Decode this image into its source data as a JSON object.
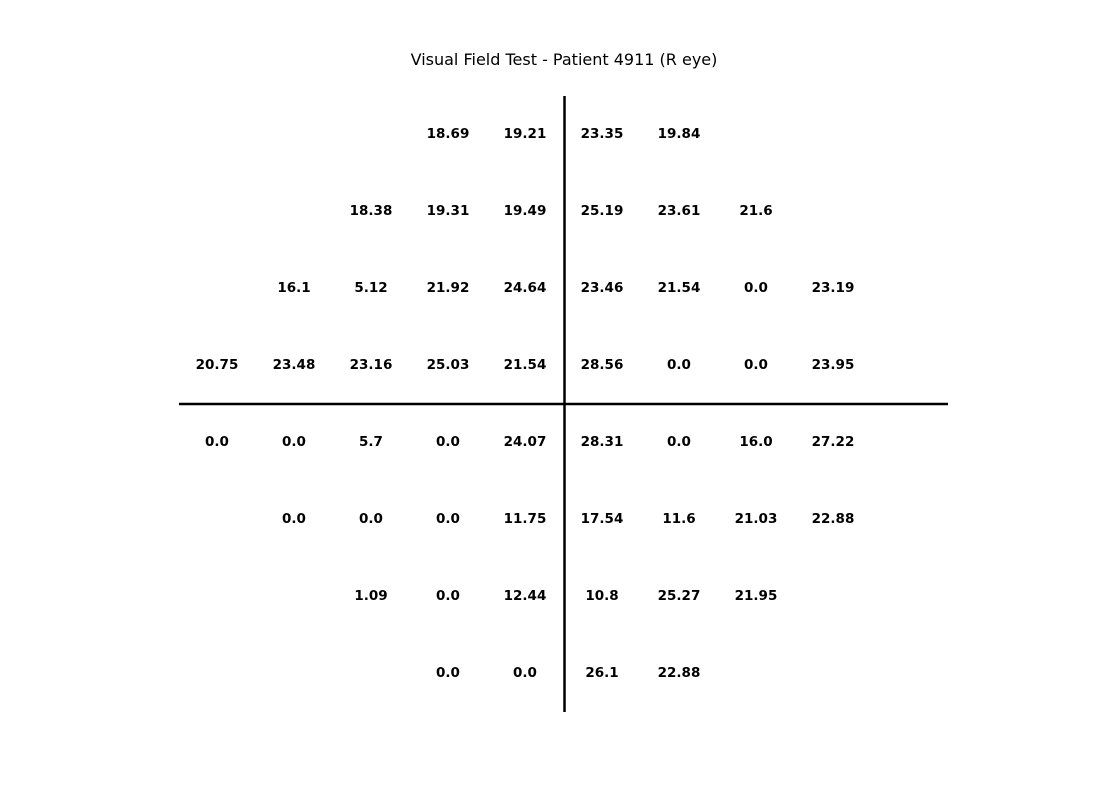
{
  "chart_data": {
    "type": "table",
    "title": "Visual Field Test - Patient 4911 (R eye)",
    "grid": false,
    "rows": [
      [
        null,
        null,
        null,
        18.69,
        19.21,
        23.35,
        19.84,
        null,
        null
      ],
      [
        null,
        null,
        18.38,
        19.31,
        19.49,
        25.19,
        23.61,
        21.6,
        null
      ],
      [
        null,
        16.1,
        5.12,
        21.92,
        24.64,
        23.46,
        21.54,
        0.0,
        23.19
      ],
      [
        20.75,
        23.48,
        23.16,
        25.03,
        21.54,
        28.56,
        0.0,
        0.0,
        23.95
      ],
      [
        0.0,
        0.0,
        5.7,
        0.0,
        24.07,
        28.31,
        0.0,
        16.0,
        27.22
      ],
      [
        null,
        0.0,
        0.0,
        0.0,
        11.75,
        17.54,
        11.6,
        21.03,
        22.88
      ],
      [
        null,
        null,
        1.09,
        0.0,
        12.44,
        10.8,
        25.27,
        21.95,
        null
      ],
      [
        null,
        null,
        null,
        0.0,
        0.0,
        26.1,
        22.88,
        null,
        null
      ]
    ]
  }
}
